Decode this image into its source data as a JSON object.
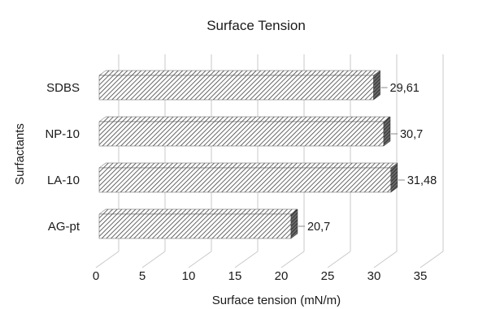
{
  "chart_data": {
    "type": "bar",
    "orientation": "horizontal",
    "title": "Surface Tension",
    "xlabel": "Surface tension (mN/m)",
    "ylabel": "Surfactants",
    "categories": [
      "SDBS",
      "NP-10",
      "LA-10",
      "AG-pt"
    ],
    "values": [
      29.61,
      30.7,
      31.48,
      20.7
    ],
    "data_labels": [
      "29,61",
      "30,7",
      "31,48",
      "20,7"
    ],
    "xlim": [
      0,
      35
    ],
    "xticks": [
      "0",
      "5",
      "10",
      "15",
      "20",
      "25",
      "30",
      "35"
    ],
    "grid": true,
    "style": "3d-hatched",
    "legend": "none"
  }
}
